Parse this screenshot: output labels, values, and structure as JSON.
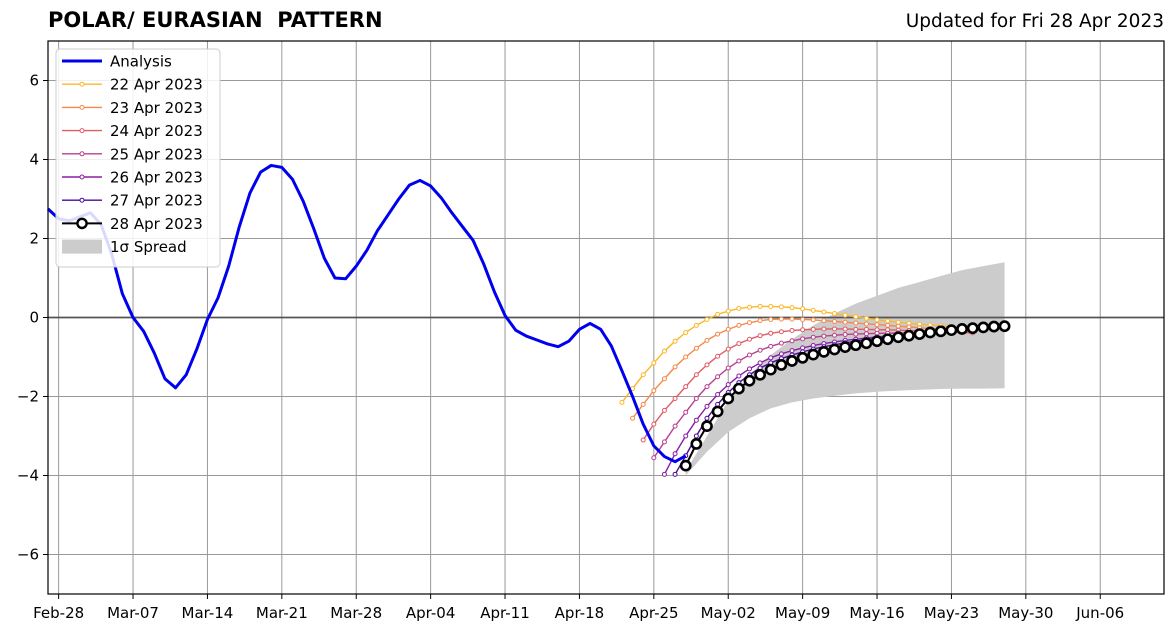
{
  "chart_data": {
    "type": "line",
    "title": "POLAR/ EURASIAN  PATTERN",
    "subtitle": "Updated for Fri 28 Apr 2023",
    "xlabel": "",
    "ylabel": "",
    "ylim": [
      -7,
      7
    ],
    "yticks": [
      -6,
      -4,
      -2,
      0,
      2,
      4,
      6
    ],
    "ytick_labels": [
      "−6",
      "−4",
      "−2",
      "0",
      "2",
      "4",
      "6"
    ],
    "xlim": [
      "2023-02-27",
      "2023-06-12"
    ],
    "xticks": [
      "2023-02-28",
      "2023-03-07",
      "2023-03-14",
      "2023-03-21",
      "2023-03-28",
      "2023-04-04",
      "2023-04-11",
      "2023-04-18",
      "2023-04-25",
      "2023-05-02",
      "2023-05-09",
      "2023-05-16",
      "2023-05-23",
      "2023-05-30",
      "2023-06-06"
    ],
    "xtick_labels": [
      "Feb-28",
      "Mar-07",
      "Mar-14",
      "Mar-21",
      "Mar-28",
      "Apr-04",
      "Apr-11",
      "Apr-18",
      "Apr-25",
      "May-02",
      "May-09",
      "May-16",
      "May-23",
      "May-30",
      "Jun-06"
    ],
    "grid": true,
    "legend_position": "top-left",
    "series": [
      {
        "name": "Analysis",
        "color": "#0000ee",
        "x": [
          "2023-02-27",
          "2023-02-28",
          "2023-03-01",
          "2023-03-02",
          "2023-03-03",
          "2023-03-04",
          "2023-03-05",
          "2023-03-06",
          "2023-03-07",
          "2023-03-08",
          "2023-03-09",
          "2023-03-10",
          "2023-03-11",
          "2023-03-12",
          "2023-03-13",
          "2023-03-14",
          "2023-03-15",
          "2023-03-16",
          "2023-03-17",
          "2023-03-18",
          "2023-03-19",
          "2023-03-20",
          "2023-03-21",
          "2023-03-22",
          "2023-03-23",
          "2023-03-24",
          "2023-03-25",
          "2023-03-26",
          "2023-03-27",
          "2023-03-28",
          "2023-03-29",
          "2023-03-30",
          "2023-03-31",
          "2023-04-01",
          "2023-04-02",
          "2023-04-03",
          "2023-04-04",
          "2023-04-05",
          "2023-04-06",
          "2023-04-07",
          "2023-04-08",
          "2023-04-09",
          "2023-04-10",
          "2023-04-11",
          "2023-04-12",
          "2023-04-13",
          "2023-04-14",
          "2023-04-15",
          "2023-04-16",
          "2023-04-17",
          "2023-04-18",
          "2023-04-19",
          "2023-04-20",
          "2023-04-21",
          "2023-04-22",
          "2023-04-23",
          "2023-04-24",
          "2023-04-25",
          "2023-04-26",
          "2023-04-27",
          "2023-04-28"
        ],
        "values": [
          2.75,
          2.5,
          2.45,
          2.55,
          2.65,
          2.35,
          1.6,
          0.6,
          0.0,
          -0.35,
          -0.9,
          -1.55,
          -1.78,
          -1.45,
          -0.8,
          -0.05,
          0.5,
          1.3,
          2.3,
          3.15,
          3.68,
          3.85,
          3.8,
          3.5,
          2.95,
          2.25,
          1.5,
          1.0,
          0.98,
          1.3,
          1.7,
          2.2,
          2.6,
          3.0,
          3.35,
          3.47,
          3.33,
          3.03,
          2.65,
          2.3,
          1.95,
          1.35,
          0.65,
          0.05,
          -0.32,
          -0.47,
          -0.57,
          -0.67,
          -0.74,
          -0.6,
          -0.3,
          -0.15,
          -0.3,
          -0.72,
          -1.35,
          -2.0,
          -2.7,
          -3.25,
          -3.52,
          -3.65,
          -3.5
        ]
      },
      {
        "name": "22 Apr 2023",
        "color": "#fbb829",
        "x": [
          "2023-04-22",
          "2023-04-23",
          "2023-04-24",
          "2023-04-25",
          "2023-04-26",
          "2023-04-27",
          "2023-04-28",
          "2023-04-29",
          "2023-04-30",
          "2023-05-01",
          "2023-05-02",
          "2023-05-03",
          "2023-05-04",
          "2023-05-05",
          "2023-05-06",
          "2023-05-07",
          "2023-05-08",
          "2023-05-09",
          "2023-05-10",
          "2023-05-11",
          "2023-05-12",
          "2023-05-13",
          "2023-05-14",
          "2023-05-15",
          "2023-05-16",
          "2023-05-17",
          "2023-05-18",
          "2023-05-19",
          "2023-05-20",
          "2023-05-21",
          "2023-05-22",
          "2023-05-23"
        ],
        "values": [
          -2.15,
          -1.8,
          -1.45,
          -1.15,
          -0.85,
          -0.6,
          -0.38,
          -0.2,
          -0.05,
          0.08,
          0.16,
          0.23,
          0.26,
          0.28,
          0.28,
          0.27,
          0.25,
          0.22,
          0.18,
          0.14,
          0.1,
          0.06,
          0.02,
          -0.02,
          -0.06,
          -0.09,
          -0.12,
          -0.15,
          -0.17,
          -0.19,
          -0.21,
          -0.23
        ]
      },
      {
        "name": "23 Apr 2023",
        "color": "#f4894b",
        "x": [
          "2023-04-23",
          "2023-04-24",
          "2023-04-25",
          "2023-04-26",
          "2023-04-27",
          "2023-04-28",
          "2023-04-29",
          "2023-04-30",
          "2023-05-01",
          "2023-05-02",
          "2023-05-03",
          "2023-05-04",
          "2023-05-05",
          "2023-05-06",
          "2023-05-07",
          "2023-05-08",
          "2023-05-09",
          "2023-05-10",
          "2023-05-11",
          "2023-05-12",
          "2023-05-13",
          "2023-05-14",
          "2023-05-15",
          "2023-05-16",
          "2023-05-17",
          "2023-05-18",
          "2023-05-19",
          "2023-05-20",
          "2023-05-21",
          "2023-05-22",
          "2023-05-23",
          "2023-05-24"
        ],
        "values": [
          -2.55,
          -2.2,
          -1.85,
          -1.55,
          -1.25,
          -1.0,
          -0.78,
          -0.58,
          -0.42,
          -0.3,
          -0.2,
          -0.13,
          -0.08,
          -0.05,
          -0.04,
          -0.04,
          -0.05,
          -0.06,
          -0.08,
          -0.1,
          -0.12,
          -0.14,
          -0.16,
          -0.18,
          -0.2,
          -0.22,
          -0.24,
          -0.26,
          -0.28,
          -0.3,
          -0.32,
          -0.34
        ]
      },
      {
        "name": "24 Apr 2023",
        "color": "#e05c67",
        "x": [
          "2023-04-24",
          "2023-04-25",
          "2023-04-26",
          "2023-04-27",
          "2023-04-28",
          "2023-04-29",
          "2023-04-30",
          "2023-05-01",
          "2023-05-02",
          "2023-05-03",
          "2023-05-04",
          "2023-05-05",
          "2023-05-06",
          "2023-05-07",
          "2023-05-08",
          "2023-05-09",
          "2023-05-10",
          "2023-05-11",
          "2023-05-12",
          "2023-05-13",
          "2023-05-14",
          "2023-05-15",
          "2023-05-16",
          "2023-05-17",
          "2023-05-18",
          "2023-05-19",
          "2023-05-20",
          "2023-05-21",
          "2023-05-22",
          "2023-05-23",
          "2023-05-24",
          "2023-05-25"
        ],
        "values": [
          -3.1,
          -2.7,
          -2.35,
          -2.05,
          -1.75,
          -1.45,
          -1.2,
          -0.98,
          -0.8,
          -0.66,
          -0.55,
          -0.46,
          -0.4,
          -0.36,
          -0.33,
          -0.31,
          -0.3,
          -0.29,
          -0.29,
          -0.29,
          -0.3,
          -0.3,
          -0.31,
          -0.31,
          -0.32,
          -0.33,
          -0.34,
          -0.35,
          -0.36,
          -0.37,
          -0.38,
          -0.39
        ]
      },
      {
        "name": "25 Apr 2023",
        "color": "#b8408e",
        "x": [
          "2023-04-25",
          "2023-04-26",
          "2023-04-27",
          "2023-04-28",
          "2023-04-29",
          "2023-04-30",
          "2023-05-01",
          "2023-05-02",
          "2023-05-03",
          "2023-05-04",
          "2023-05-05",
          "2023-05-06",
          "2023-05-07",
          "2023-05-08",
          "2023-05-09",
          "2023-05-10",
          "2023-05-11",
          "2023-05-12",
          "2023-05-13",
          "2023-05-14",
          "2023-05-15",
          "2023-05-16",
          "2023-05-17",
          "2023-05-18",
          "2023-05-19",
          "2023-05-20",
          "2023-05-21",
          "2023-05-22",
          "2023-05-23"
        ],
        "values": [
          -3.55,
          -3.15,
          -2.75,
          -2.4,
          -2.05,
          -1.75,
          -1.5,
          -1.28,
          -1.1,
          -0.95,
          -0.83,
          -0.73,
          -0.65,
          -0.59,
          -0.54,
          -0.5,
          -0.47,
          -0.45,
          -0.43,
          -0.42,
          -0.41,
          -0.4,
          -0.4,
          -0.39,
          -0.39,
          -0.39,
          -0.39,
          -0.39,
          -0.39
        ]
      },
      {
        "name": "26 Apr 2023",
        "color": "#8a1ea5",
        "x": [
          "2023-04-26",
          "2023-04-27",
          "2023-04-28",
          "2023-04-29",
          "2023-04-30",
          "2023-05-01",
          "2023-05-02",
          "2023-05-03",
          "2023-05-04",
          "2023-05-05",
          "2023-05-06",
          "2023-05-07",
          "2023-05-08",
          "2023-05-09",
          "2023-05-10",
          "2023-05-11",
          "2023-05-12",
          "2023-05-13",
          "2023-05-14",
          "2023-05-15",
          "2023-05-16",
          "2023-05-17",
          "2023-05-18",
          "2023-05-19",
          "2023-05-20",
          "2023-05-21"
        ],
        "values": [
          -3.97,
          -3.45,
          -3.0,
          -2.6,
          -2.25,
          -1.95,
          -1.7,
          -1.48,
          -1.3,
          -1.15,
          -1.02,
          -0.92,
          -0.84,
          -0.77,
          -0.71,
          -0.66,
          -0.62,
          -0.58,
          -0.55,
          -0.52,
          -0.49,
          -0.47,
          -0.45,
          -0.43,
          -0.41,
          -0.4
        ]
      },
      {
        "name": "27 Apr 2023",
        "color": "#4a0b9a",
        "x": [
          "2023-04-27",
          "2023-04-28",
          "2023-04-29",
          "2023-04-30",
          "2023-05-01",
          "2023-05-02",
          "2023-05-03",
          "2023-05-04",
          "2023-05-05",
          "2023-05-06",
          "2023-05-07",
          "2023-05-08",
          "2023-05-09",
          "2023-05-10",
          "2023-05-11",
          "2023-05-12",
          "2023-05-13",
          "2023-05-14",
          "2023-05-15",
          "2023-05-16",
          "2023-05-17",
          "2023-05-18",
          "2023-05-19",
          "2023-05-20",
          "2023-05-21"
        ],
        "values": [
          -3.97,
          -3.5,
          -3.0,
          -2.55,
          -2.2,
          -1.9,
          -1.65,
          -1.45,
          -1.28,
          -1.15,
          -1.04,
          -0.95,
          -0.87,
          -0.8,
          -0.74,
          -0.69,
          -0.64,
          -0.6,
          -0.56,
          -0.53,
          -0.5,
          -0.47,
          -0.45,
          -0.43,
          -0.41
        ]
      },
      {
        "name": "28 Apr 2023",
        "color": "#000000",
        "x": [
          "2023-04-28",
          "2023-04-29",
          "2023-04-30",
          "2023-05-01",
          "2023-05-02",
          "2023-05-03",
          "2023-05-04",
          "2023-05-05",
          "2023-05-06",
          "2023-05-07",
          "2023-05-08",
          "2023-05-09",
          "2023-05-10",
          "2023-05-11",
          "2023-05-12",
          "2023-05-13",
          "2023-05-14",
          "2023-05-15",
          "2023-05-16",
          "2023-05-17",
          "2023-05-18",
          "2023-05-19",
          "2023-05-20",
          "2023-05-21",
          "2023-05-22",
          "2023-05-23",
          "2023-05-24",
          "2023-05-25",
          "2023-05-26",
          "2023-05-27",
          "2023-05-28"
        ],
        "values": [
          -3.75,
          -3.2,
          -2.75,
          -2.38,
          -2.05,
          -1.8,
          -1.6,
          -1.45,
          -1.32,
          -1.2,
          -1.1,
          -1.02,
          -0.94,
          -0.87,
          -0.81,
          -0.75,
          -0.7,
          -0.65,
          -0.6,
          -0.55,
          -0.5,
          -0.46,
          -0.42,
          -0.38,
          -0.35,
          -0.32,
          -0.29,
          -0.27,
          -0.25,
          -0.23,
          -0.22
        ]
      }
    ],
    "spread": {
      "name": "1σ Spread",
      "color": "#cccccc",
      "x": [
        "2023-04-28",
        "2023-04-30",
        "2023-05-02",
        "2023-05-04",
        "2023-05-06",
        "2023-05-08",
        "2023-05-10",
        "2023-05-12",
        "2023-05-14",
        "2023-05-16",
        "2023-05-18",
        "2023-05-20",
        "2023-05-22",
        "2023-05-24",
        "2023-05-26",
        "2023-05-28"
      ],
      "upper": [
        -3.9,
        -3.0,
        -2.1,
        -1.45,
        -0.95,
        -0.55,
        -0.2,
        0.1,
        0.35,
        0.55,
        0.75,
        0.9,
        1.05,
        1.2,
        1.3,
        1.4
      ],
      "lower": [
        -4.0,
        -3.4,
        -2.9,
        -2.55,
        -2.3,
        -2.15,
        -2.05,
        -1.98,
        -1.92,
        -1.88,
        -1.85,
        -1.83,
        -1.81,
        -1.8,
        -1.8,
        -1.79
      ]
    }
  }
}
